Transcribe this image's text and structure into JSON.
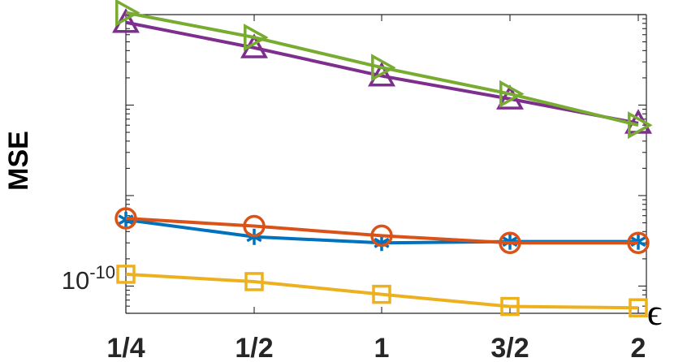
{
  "chart_data": {
    "type": "line",
    "title": "",
    "xlabel": "ϵ",
    "ylabel": "MSE",
    "yscale": "log",
    "categories": [
      "1/4",
      "1/2",
      "1",
      "3/2",
      "2"
    ],
    "ytick_label": "10",
    "ytick_exponent": "-10",
    "ylim": [
      5e-11,
      1e-07
    ],
    "grid": false,
    "legend": "none",
    "series": [
      {
        "color": "#0072BD",
        "marker": "asterisk",
        "values": [
          5.4e-10,
          3.5e-10,
          3e-10,
          3.1e-10,
          3.1e-10
        ]
      },
      {
        "color": "#D95319",
        "marker": "circle",
        "values": [
          5.6e-10,
          4.6e-10,
          3.6e-10,
          3e-10,
          3e-10
        ]
      },
      {
        "color": "#EDB120",
        "marker": "square",
        "values": [
          1.35e-10,
          1.12e-10,
          8.1e-11,
          5.95e-11,
          5.75e-11
        ]
      },
      {
        "color": "#7E2F8E",
        "marker": "triangle-up",
        "values": [
          8.2e-08,
          4.3e-08,
          2.1e-08,
          1.17e-08,
          6.3e-09
        ]
      },
      {
        "color": "#77AC30",
        "marker": "triangle-right",
        "values": [
          1.05e-07,
          5.6e-08,
          2.6e-08,
          1.33e-08,
          6e-09
        ]
      }
    ]
  }
}
